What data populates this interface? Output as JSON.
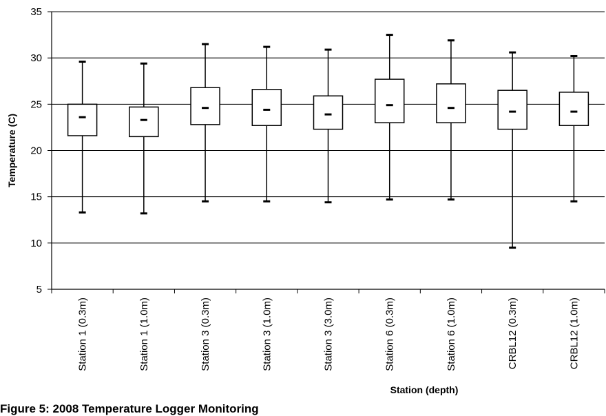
{
  "caption": "Figure 5: 2008 Temperature Logger Monitoring",
  "chart_data": {
    "type": "boxplot",
    "ylabel": "Temperature (C)",
    "xlabel": "Station (depth)",
    "ylim": [
      5,
      35
    ],
    "yticks": [
      5,
      10,
      15,
      20,
      25,
      30,
      35
    ],
    "grid": "horizontal",
    "categories": [
      "Station 1 (0.3m)",
      "Station 1 (1.0m)",
      "Station 3 (0.3m)",
      "Station 3 (1.0m)",
      "Station 3 (3.0m)",
      "Station 6 (0.3m)",
      "Station 6 (1.0m)",
      "CRBL12 (0.3m)",
      "CRBL12 (1.0m)"
    ],
    "min": [
      13.3,
      13.2,
      14.5,
      14.5,
      14.4,
      14.7,
      14.7,
      9.5,
      14.5
    ],
    "q1": [
      21.6,
      21.5,
      22.8,
      22.7,
      22.3,
      23.0,
      23.0,
      22.3,
      22.7
    ],
    "median": [
      23.6,
      23.3,
      24.6,
      24.4,
      23.9,
      24.9,
      24.6,
      24.2,
      24.2
    ],
    "q3": [
      25.0,
      24.7,
      26.8,
      26.6,
      25.9,
      27.7,
      27.2,
      26.5,
      26.3
    ],
    "max": [
      29.6,
      29.4,
      31.5,
      31.2,
      30.9,
      32.5,
      31.9,
      30.6,
      30.2
    ]
  }
}
